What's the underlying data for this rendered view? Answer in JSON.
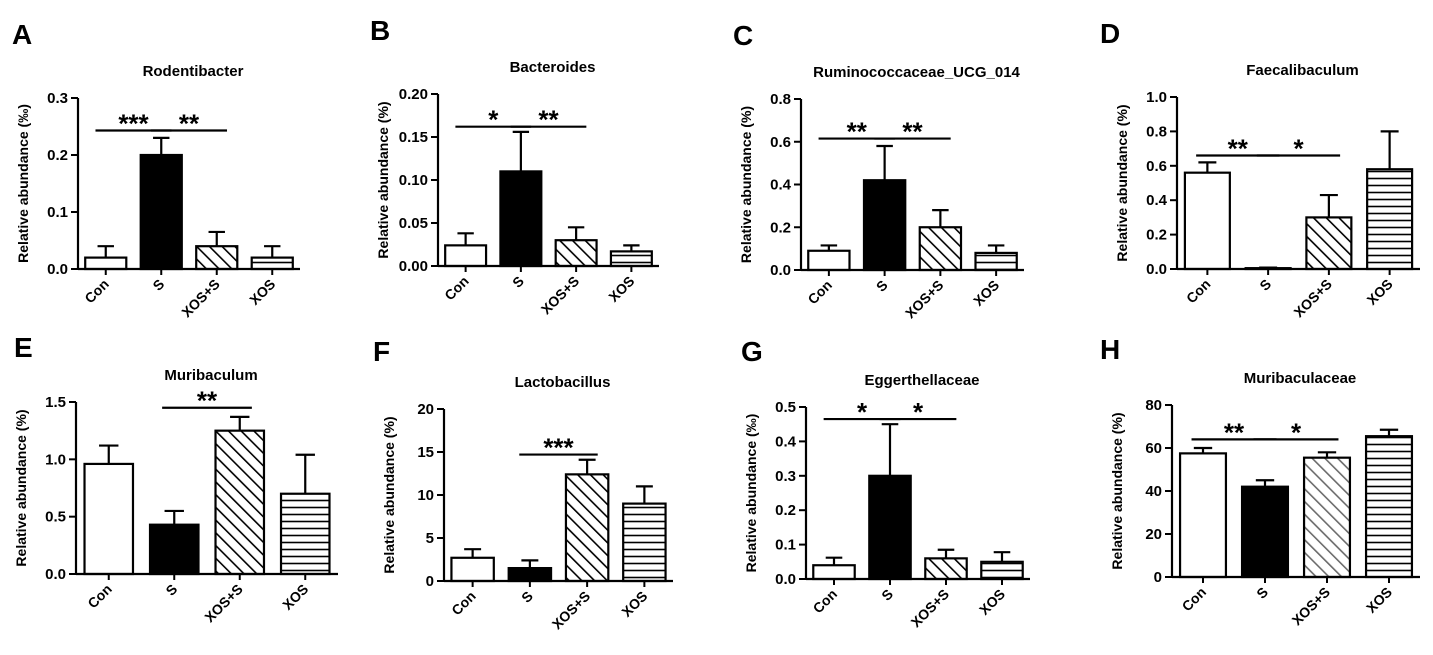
{
  "categories": [
    "Con",
    "S",
    "XOS+S",
    "XOS"
  ],
  "colors": {
    "ink": "#000000",
    "fill_white": "#ffffff",
    "fill_black": "#000000",
    "hatch_grey": "#6b6b6b"
  },
  "chart_data": [
    {
      "type": "bar",
      "letter": "A",
      "title": "Rodentibacter",
      "ylabel": "Relative abundance (‰)",
      "ylim": [
        0,
        0.3
      ],
      "yticks": [
        "0.0",
        "0.1",
        "0.2",
        "0.3"
      ],
      "ytick_values": [
        0,
        0.1,
        0.2,
        0.3
      ],
      "categories": [
        "Con",
        "S",
        "XOS+S",
        "XOS"
      ],
      "values": [
        0.02,
        0.2,
        0.04,
        0.02
      ],
      "errors": [
        0.02,
        0.03,
        0.025,
        0.02
      ],
      "fills": [
        "white",
        "black",
        "diagonal",
        "horizontal"
      ],
      "significance": [
        {
          "from": 0,
          "to": 1,
          "label": "***",
          "level": 0.243
        },
        {
          "from": 1,
          "to": 2,
          "label": "**",
          "level": 0.243
        }
      ]
    },
    {
      "type": "bar",
      "letter": "B",
      "title": "Bacteroides",
      "ylabel": "Relative abundance (%)",
      "ylim": [
        0,
        0.2
      ],
      "yticks": [
        "0.00",
        "0.05",
        "0.10",
        "0.15",
        "0.20"
      ],
      "ytick_values": [
        0,
        0.05,
        0.1,
        0.15,
        0.2
      ],
      "categories": [
        "Con",
        "S",
        "XOS+S",
        "XOS"
      ],
      "values": [
        0.024,
        0.11,
        0.03,
        0.017
      ],
      "errors": [
        0.014,
        0.046,
        0.015,
        0.007
      ],
      "fills": [
        "white",
        "black",
        "diagonal",
        "horizontal"
      ],
      "significance": [
        {
          "from": 0,
          "to": 1,
          "label": "*",
          "level": 0.162
        },
        {
          "from": 1,
          "to": 2,
          "label": "**",
          "level": 0.162
        }
      ]
    },
    {
      "type": "bar",
      "letter": "C",
      "title": "Ruminococcaceae_UCG_014",
      "ylabel": "Relative abundance (%)",
      "ylim": [
        0,
        0.8
      ],
      "yticks": [
        "0.0",
        "0.2",
        "0.4",
        "0.6",
        "0.8"
      ],
      "ytick_values": [
        0,
        0.2,
        0.4,
        0.6,
        0.8
      ],
      "categories": [
        "Con",
        "S",
        "XOS+S",
        "XOS"
      ],
      "values": [
        0.09,
        0.42,
        0.2,
        0.08
      ],
      "errors": [
        0.025,
        0.16,
        0.08,
        0.035
      ],
      "fills": [
        "white",
        "black",
        "diagonal",
        "horizontal"
      ],
      "significance": [
        {
          "from": 0,
          "to": 1,
          "label": "**",
          "level": 0.615
        },
        {
          "from": 1,
          "to": 2,
          "label": "**",
          "level": 0.615
        }
      ]
    },
    {
      "type": "bar",
      "letter": "D",
      "title": "Faecalibaculum",
      "ylabel": "Relative abundance (%)",
      "ylim": [
        0,
        1.0
      ],
      "yticks": [
        "0.0",
        "0.2",
        "0.4",
        "0.6",
        "0.8",
        "1.0"
      ],
      "ytick_values": [
        0,
        0.2,
        0.4,
        0.6,
        0.8,
        1.0
      ],
      "categories": [
        "Con",
        "S",
        "XOS+S",
        "XOS"
      ],
      "values": [
        0.56,
        0.005,
        0.3,
        0.58
      ],
      "errors": [
        0.06,
        0.003,
        0.13,
        0.22
      ],
      "fills": [
        "white",
        "black",
        "diagonal",
        "horizontal"
      ],
      "significance": [
        {
          "from": 0,
          "to": 1,
          "label": "**",
          "level": 0.66
        },
        {
          "from": 1,
          "to": 2,
          "label": "*",
          "level": 0.66
        }
      ]
    },
    {
      "type": "bar",
      "letter": "E",
      "title": "Muribaculum",
      "ylabel": "Relative abundance (%)",
      "ylim": [
        0,
        1.5
      ],
      "yticks": [
        "0.0",
        "0.5",
        "1.0",
        "1.5"
      ],
      "ytick_values": [
        0,
        0.5,
        1.0,
        1.5
      ],
      "categories": [
        "Con",
        "S",
        "XOS+S",
        "XOS"
      ],
      "values": [
        0.96,
        0.43,
        1.25,
        0.7
      ],
      "errors": [
        0.16,
        0.12,
        0.12,
        0.34
      ],
      "fills": [
        "white",
        "black",
        "diagonal",
        "horizontal"
      ],
      "significance": [
        {
          "from": 1,
          "to": 2,
          "label": "**",
          "level": 1.45
        }
      ]
    },
    {
      "type": "bar",
      "letter": "F",
      "title": "Lactobacillus",
      "ylabel": "Relative abundance (%)",
      "ylim": [
        0,
        20
      ],
      "yticks": [
        "0",
        "5",
        "10",
        "15",
        "20"
      ],
      "ytick_values": [
        0,
        5,
        10,
        15,
        20
      ],
      "categories": [
        "Con",
        "S",
        "XOS+S",
        "XOS"
      ],
      "values": [
        2.7,
        1.5,
        12.4,
        9.0
      ],
      "errors": [
        1.0,
        0.9,
        1.7,
        2.0
      ],
      "fills": [
        "white",
        "black",
        "diagonal",
        "horizontal"
      ],
      "significance": [
        {
          "from": 1,
          "to": 2,
          "label": "***",
          "level": 14.7
        }
      ]
    },
    {
      "type": "bar",
      "letter": "G",
      "title": "Eggerthellaceae",
      "ylabel": "Relative abundance (‰)",
      "ylim": [
        0,
        0.5
      ],
      "yticks": [
        "0.0",
        "0.1",
        "0.2",
        "0.3",
        "0.4",
        "0.5"
      ],
      "ytick_values": [
        0,
        0.1,
        0.2,
        0.3,
        0.4,
        0.5
      ],
      "categories": [
        "Con",
        "S",
        "XOS+S",
        "XOS"
      ],
      "values": [
        0.04,
        0.3,
        0.06,
        0.05
      ],
      "errors": [
        0.022,
        0.15,
        0.025,
        0.028
      ],
      "fills": [
        "white",
        "black",
        "diagonal",
        "horizontal"
      ],
      "significance": [
        {
          "from": 0,
          "to": 1,
          "label": "*",
          "level": 0.465
        },
        {
          "from": 1,
          "to": 2,
          "label": "*",
          "level": 0.465
        }
      ]
    },
    {
      "type": "bar",
      "letter": "H",
      "title": "Muribaculaceae",
      "ylabel": "Relative abundance (%)",
      "ylim": [
        0,
        80
      ],
      "yticks": [
        "0",
        "20",
        "40",
        "60",
        "80"
      ],
      "ytick_values": [
        0,
        20,
        40,
        60,
        80
      ],
      "categories": [
        "Con",
        "S",
        "XOS+S",
        "XOS"
      ],
      "values": [
        57.5,
        42,
        55.5,
        65.5
      ],
      "errors": [
        2.5,
        3.0,
        2.5,
        3.0
      ],
      "fills": [
        "white",
        "black",
        "diagonal_grey",
        "horizontal"
      ],
      "significance": [
        {
          "from": 0,
          "to": 1,
          "label": "**",
          "level": 64
        },
        {
          "from": 1,
          "to": 2,
          "label": "*",
          "level": 64
        }
      ]
    }
  ]
}
